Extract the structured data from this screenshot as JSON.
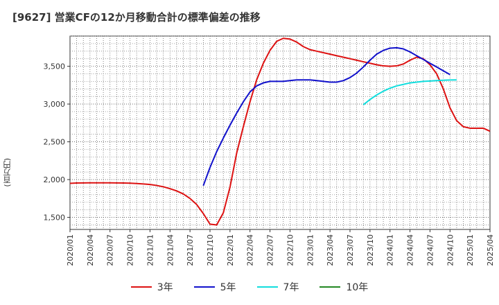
{
  "title": "[9627]  営業CFの12か月移動合計の標準偏差の推移",
  "chart_data": {
    "type": "line",
    "title": "[9627]  営業CFの12か月移動合計の標準偏差の推移",
    "ylabel": "(百万円)",
    "xlabel": "",
    "ylim": [
      1340,
      3900
    ],
    "yticks": [
      1500,
      2000,
      2500,
      3000,
      3500
    ],
    "ytick_labels": [
      "1,500",
      "2,000",
      "2,500",
      "3,000",
      "3,500"
    ],
    "x_categories": [
      "2020/01",
      "2020/04",
      "2020/07",
      "2020/10",
      "2021/01",
      "2021/04",
      "2021/07",
      "2021/10",
      "2022/01",
      "2022/04",
      "2022/07",
      "2022/10",
      "2023/01",
      "2023/04",
      "2023/07",
      "2023/10",
      "2024/01",
      "2024/04",
      "2024/07",
      "2024/10",
      "2025/01",
      "2025/04"
    ],
    "grid": true,
    "legend_position": "bottom",
    "series": [
      {
        "name": "3年",
        "color": "#dd1111",
        "start": "2020/01",
        "values": [
          1950,
          1955,
          1956,
          1957,
          1957,
          1957,
          1957,
          1956,
          1955,
          1952,
          1948,
          1942,
          1935,
          1922,
          1905,
          1880,
          1850,
          1810,
          1750,
          1670,
          1550,
          1410,
          1400,
          1560,
          1900,
          2350,
          2700,
          3030,
          3320,
          3540,
          3710,
          3830,
          3870,
          3860,
          3820,
          3760,
          3720,
          3700,
          3680,
          3660,
          3640,
          3620,
          3600,
          3580,
          3560,
          3540,
          3520,
          3505,
          3500,
          3505,
          3530,
          3580,
          3620,
          3600,
          3520,
          3400,
          3200,
          2950,
          2780,
          2700,
          2680,
          2680,
          2680,
          2640
        ]
      },
      {
        "name": "5年",
        "color": "#1111cc",
        "start": "2021/09",
        "values": [
          1920,
          2160,
          2370,
          2550,
          2720,
          2880,
          3030,
          3160,
          3240,
          3280,
          3300,
          3300,
          3300,
          3310,
          3320,
          3320,
          3320,
          3310,
          3300,
          3290,
          3290,
          3310,
          3350,
          3410,
          3490,
          3580,
          3660,
          3710,
          3740,
          3745,
          3730,
          3690,
          3640,
          3590,
          3540,
          3490,
          3440,
          3390
        ]
      },
      {
        "name": "7年",
        "color": "#11dddd",
        "start": "2023/09",
        "values": [
          2990,
          3060,
          3120,
          3170,
          3210,
          3240,
          3260,
          3280,
          3290,
          3300,
          3305,
          3310,
          3315,
          3318,
          3320
        ]
      },
      {
        "name": "10年",
        "color": "#228822",
        "start": "2024/10",
        "values": []
      }
    ]
  }
}
